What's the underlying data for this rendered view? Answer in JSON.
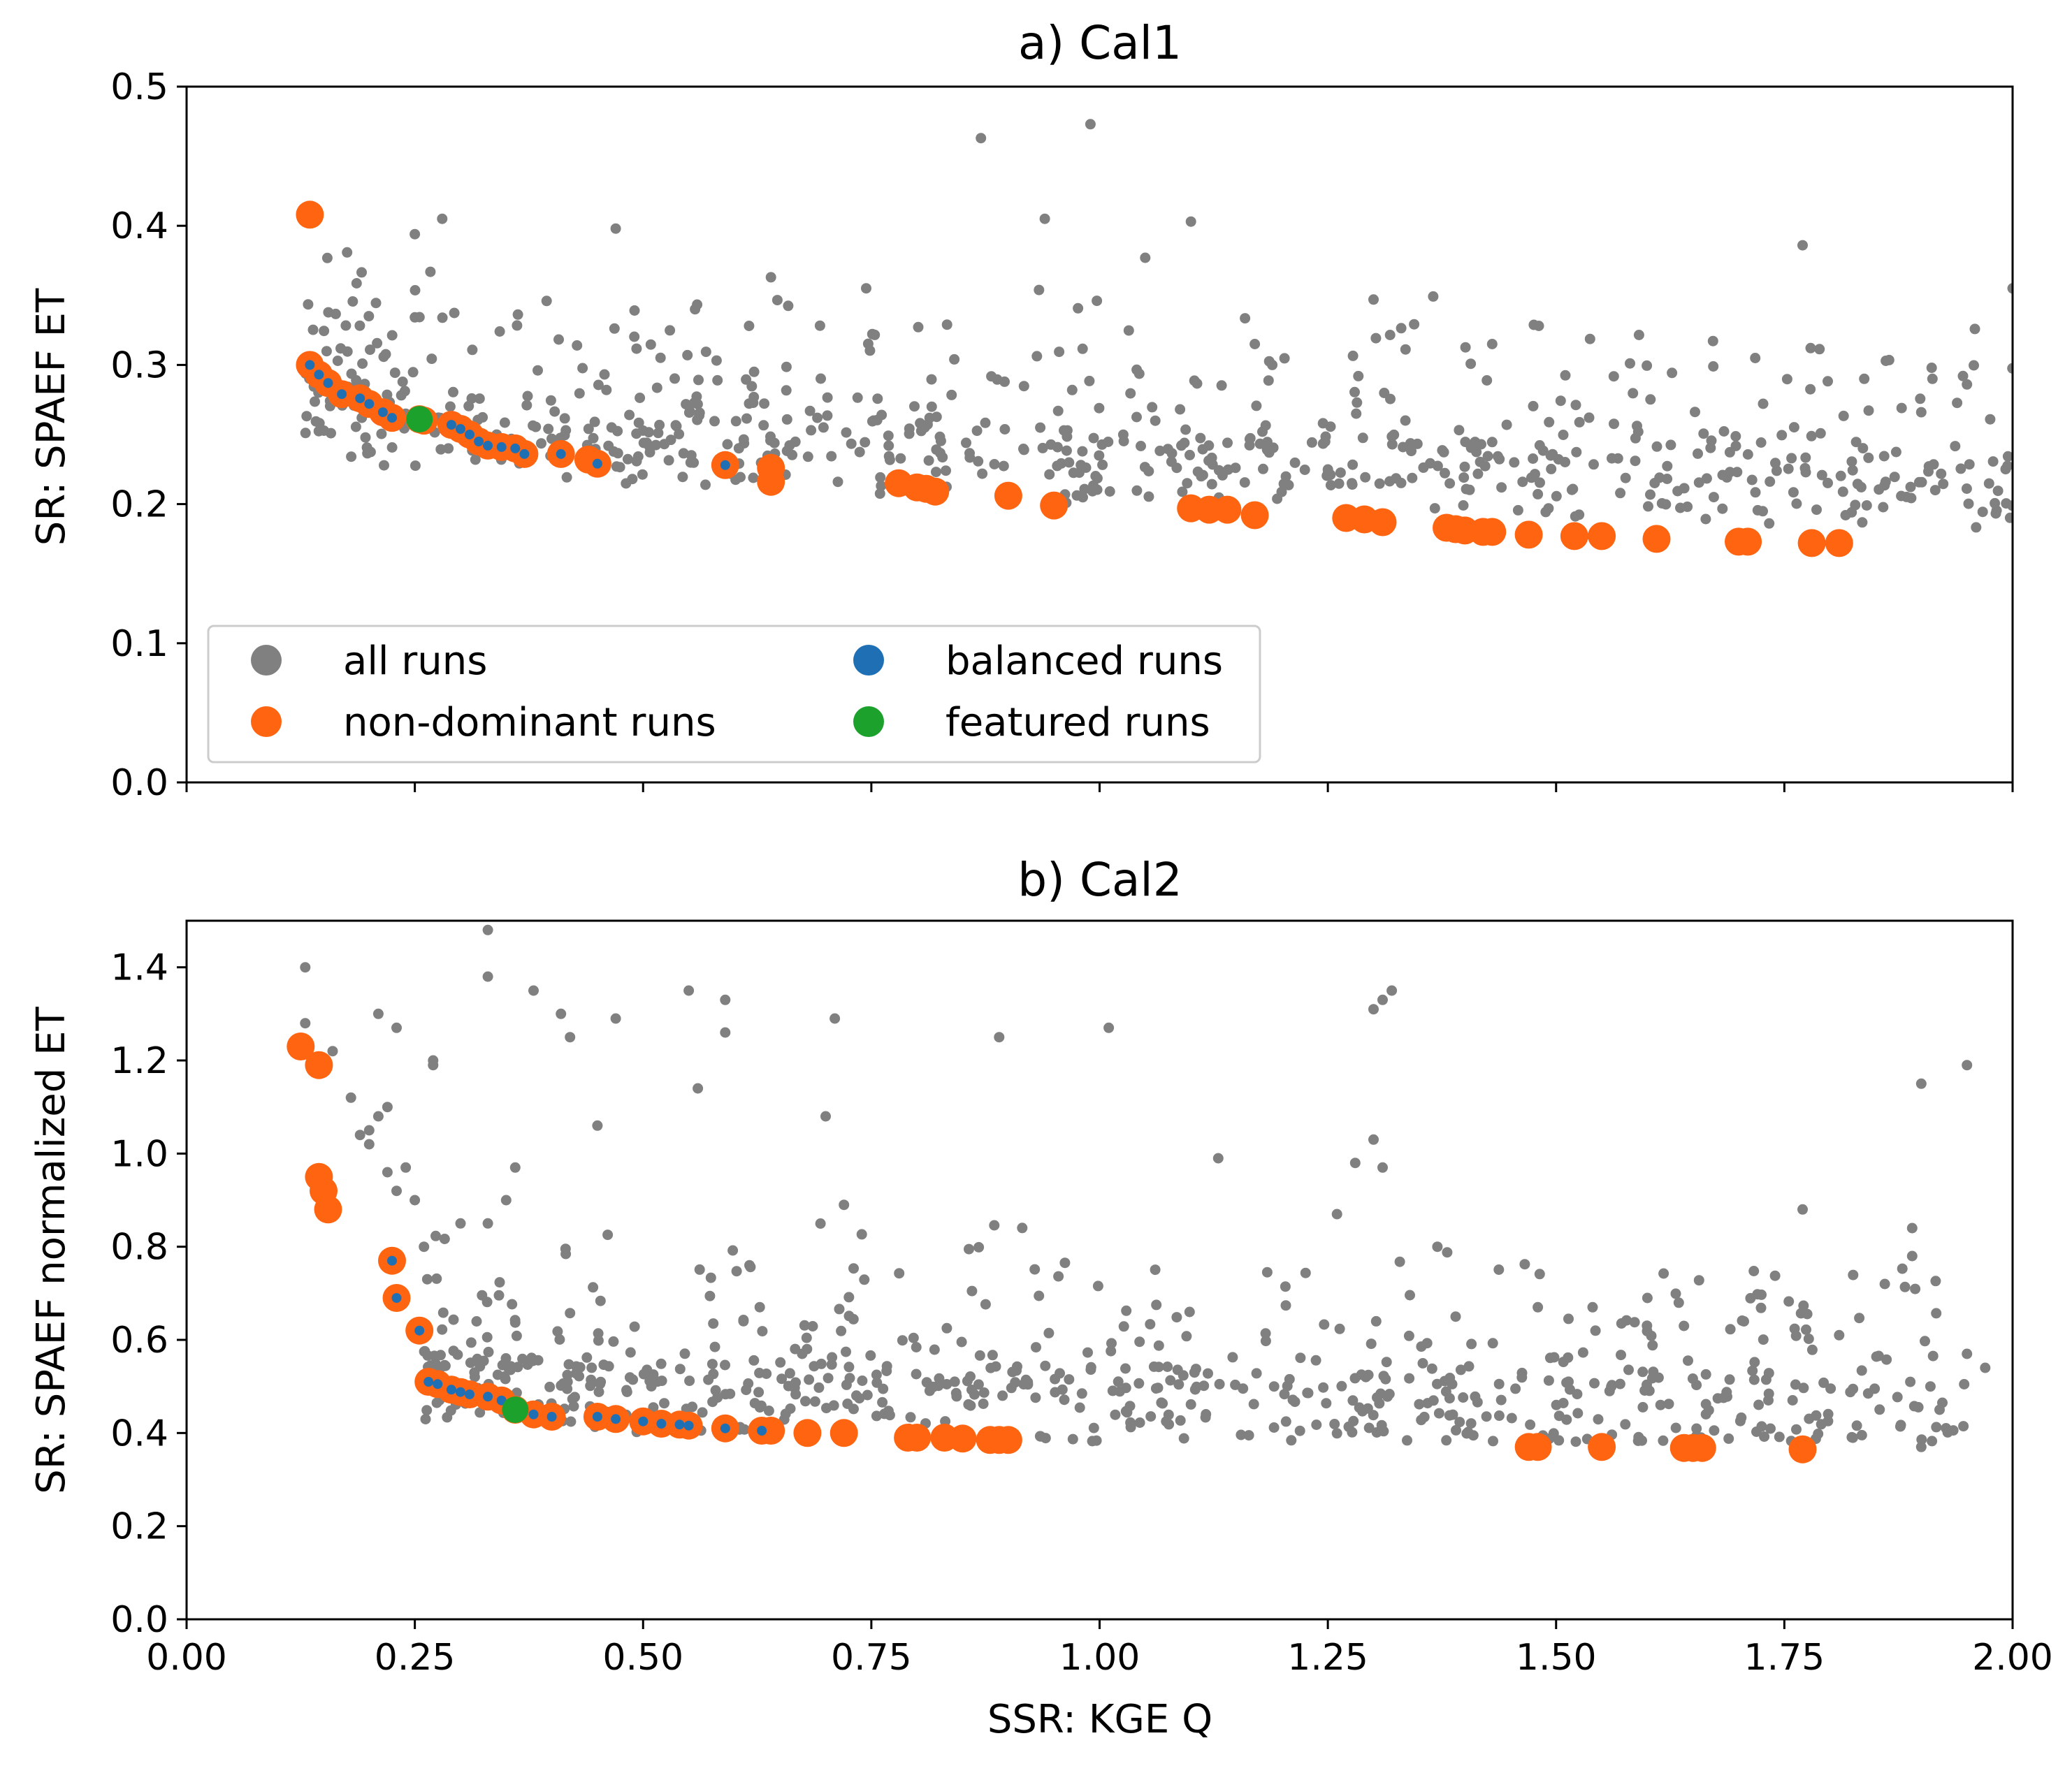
{
  "figure": {
    "xlabel": "SSR: KGE Q",
    "x_tick_labels": [
      "0.00",
      "0.25",
      "0.50",
      "0.75",
      "1.00",
      "1.25",
      "1.50",
      "1.75",
      "2.00"
    ]
  },
  "legend": {
    "position": "lower-left of panel a",
    "items": [
      {
        "label": "all runs",
        "color": "#808080"
      },
      {
        "label": "non-dominant runs",
        "color": "#FF6411"
      },
      {
        "label": "balanced runs",
        "color": "#1F6FB5"
      },
      {
        "label": "featured runs",
        "color": "#1CA12D"
      }
    ]
  },
  "chart_data": [
    {
      "type": "scatter",
      "title": "a) Cal1",
      "xlabel": "",
      "ylabel": "SR: SPAEF ET",
      "xlim": [
        0,
        2
      ],
      "ylim": [
        0,
        0.5
      ],
      "x_ticks": [
        0,
        0.25,
        0.5,
        0.75,
        1.0,
        1.25,
        1.5,
        1.75,
        2.0
      ],
      "y_ticks": [
        0.0,
        0.1,
        0.2,
        0.3,
        0.4,
        0.5
      ],
      "y_tick_labels": [
        "0.0",
        "0.1",
        "0.2",
        "0.3",
        "0.4",
        "0.5"
      ],
      "series": [
        {
          "name": "all runs",
          "color": "#808080",
          "cloud": {
            "n": 700,
            "x_min": 0.13,
            "x_max": 2.0,
            "base": [
              0.265,
              0.205
            ],
            "floor": 0.16,
            "spread": 0.06,
            "seed": 11
          },
          "points": [
            [
              0.87,
              0.463
            ],
            [
              0.99,
              0.473
            ],
            [
              0.25,
              0.394
            ],
            [
              0.28,
              0.405
            ],
            [
              0.47,
              0.398
            ],
            [
              0.94,
              0.405
            ],
            [
              1.77,
              0.386
            ],
            [
              1.1,
              0.403
            ],
            [
              1.05,
              0.377
            ],
            [
              2.0,
              0.355
            ],
            [
              1.3,
              0.347
            ],
            [
              1.95,
              0.286
            ],
            [
              0.97,
              0.282
            ],
            [
              1.9,
              0.266
            ],
            [
              1.43,
              0.315
            ],
            [
              0.64,
              0.363
            ],
            [
              1.17,
              0.315
            ]
          ]
        },
        {
          "name": "non-dominant runs",
          "color": "#FF6411",
          "points": [
            [
              0.135,
              0.408
            ],
            [
              0.135,
              0.3
            ],
            [
              0.145,
              0.293
            ],
            [
              0.155,
              0.287
            ],
            [
              0.17,
              0.279
            ],
            [
              0.19,
              0.276
            ],
            [
              0.2,
              0.272
            ],
            [
              0.215,
              0.266
            ],
            [
              0.225,
              0.262
            ],
            [
              0.255,
              0.261
            ],
            [
              0.26,
              0.26
            ],
            [
              0.29,
              0.257
            ],
            [
              0.3,
              0.254
            ],
            [
              0.31,
              0.25
            ],
            [
              0.32,
              0.245
            ],
            [
              0.33,
              0.242
            ],
            [
              0.345,
              0.241
            ],
            [
              0.36,
              0.24
            ],
            [
              0.37,
              0.236
            ],
            [
              0.41,
              0.236
            ],
            [
              0.44,
              0.232
            ],
            [
              0.45,
              0.229
            ],
            [
              0.59,
              0.228
            ],
            [
              0.64,
              0.226
            ],
            [
              0.64,
              0.216
            ],
            [
              0.78,
              0.215
            ],
            [
              0.8,
              0.212
            ],
            [
              0.81,
              0.211
            ],
            [
              0.82,
              0.209
            ],
            [
              0.9,
              0.206
            ],
            [
              0.95,
              0.199
            ],
            [
              1.1,
              0.197
            ],
            [
              1.12,
              0.196
            ],
            [
              1.14,
              0.196
            ],
            [
              1.17,
              0.192
            ],
            [
              1.27,
              0.19
            ],
            [
              1.29,
              0.189
            ],
            [
              1.31,
              0.187
            ],
            [
              1.38,
              0.183
            ],
            [
              1.39,
              0.182
            ],
            [
              1.4,
              0.181
            ],
            [
              1.42,
              0.18
            ],
            [
              1.43,
              0.18
            ],
            [
              1.47,
              0.178
            ],
            [
              1.52,
              0.177
            ],
            [
              1.55,
              0.177
            ],
            [
              1.61,
              0.175
            ],
            [
              1.7,
              0.173
            ],
            [
              1.71,
              0.173
            ],
            [
              1.78,
              0.172
            ],
            [
              1.81,
              0.172
            ]
          ]
        },
        {
          "name": "balanced runs",
          "color": "#1F6FB5",
          "points": [
            [
              0.135,
              0.3
            ],
            [
              0.145,
              0.293
            ],
            [
              0.155,
              0.287
            ],
            [
              0.17,
              0.279
            ],
            [
              0.19,
              0.276
            ],
            [
              0.2,
              0.272
            ],
            [
              0.215,
              0.266
            ],
            [
              0.225,
              0.262
            ],
            [
              0.29,
              0.257
            ],
            [
              0.3,
              0.254
            ],
            [
              0.31,
              0.25
            ],
            [
              0.32,
              0.245
            ],
            [
              0.33,
              0.242
            ],
            [
              0.345,
              0.241
            ],
            [
              0.36,
              0.24
            ],
            [
              0.37,
              0.236
            ],
            [
              0.41,
              0.236
            ],
            [
              0.45,
              0.229
            ],
            [
              0.59,
              0.228
            ]
          ]
        },
        {
          "name": "featured runs",
          "color": "#1CA12D",
          "points": [
            [
              0.255,
              0.261
            ]
          ]
        }
      ]
    },
    {
      "type": "scatter",
      "title": "b) Cal2",
      "xlabel": "SSR: KGE Q",
      "ylabel": "SR: SPAEF normalized ET",
      "xlim": [
        0,
        2
      ],
      "ylim": [
        0,
        1.5
      ],
      "x_ticks": [
        0,
        0.25,
        0.5,
        0.75,
        1.0,
        1.25,
        1.5,
        1.75,
        2.0
      ],
      "y_ticks": [
        0.0,
        0.2,
        0.4,
        0.6,
        0.8,
        1.0,
        1.2,
        1.4
      ],
      "y_tick_labels": [
        "0.0",
        "0.2",
        "0.4",
        "0.6",
        "0.8",
        "1.0",
        "1.2",
        "1.4"
      ],
      "series": [
        {
          "name": "all runs",
          "color": "#808080",
          "cloud": {
            "n": 650,
            "x_min": 0.26,
            "x_max": 1.95,
            "base": [
              0.5,
              0.42
            ],
            "floor": 0.38,
            "spread": 0.18,
            "seed": 23
          },
          "points": [
            [
              0.13,
              1.28
            ],
            [
              0.13,
              1.4
            ],
            [
              0.16,
              1.22
            ],
            [
              0.21,
              1.3
            ],
            [
              0.23,
              1.27
            ],
            [
              0.33,
              1.48
            ],
            [
              0.33,
              1.38
            ],
            [
              0.38,
              1.35
            ],
            [
              0.41,
              1.3
            ],
            [
              0.47,
              1.29
            ],
            [
              0.55,
              1.35
            ],
            [
              0.59,
              1.33
            ],
            [
              0.59,
              1.26
            ],
            [
              0.71,
              1.29
            ],
            [
              0.89,
              1.25
            ],
            [
              1.01,
              1.27
            ],
            [
              1.31,
              1.33
            ],
            [
              1.32,
              1.35
            ],
            [
              1.3,
              1.31
            ],
            [
              0.21,
              1.08
            ],
            [
              0.2,
              1.05
            ],
            [
              0.19,
              1.04
            ],
            [
              0.22,
              0.96
            ],
            [
              0.23,
              0.92
            ],
            [
              0.27,
              1.19
            ],
            [
              0.27,
              1.2
            ],
            [
              0.56,
              1.14
            ],
            [
              0.42,
              1.25
            ],
            [
              0.45,
              1.06
            ],
            [
              0.7,
              1.08
            ],
            [
              0.72,
              0.89
            ],
            [
              1.13,
              0.99
            ],
            [
              1.3,
              1.03
            ],
            [
              1.31,
              0.97
            ],
            [
              1.28,
              0.98
            ],
            [
              1.9,
              1.15
            ],
            [
              1.95,
              1.19
            ],
            [
              1.89,
              0.84
            ],
            [
              1.89,
              0.78
            ],
            [
              1.77,
              0.88
            ],
            [
              1.86,
              0.72
            ],
            [
              1.91,
              0.5
            ],
            [
              1.92,
              0.45
            ],
            [
              1.95,
              0.57
            ],
            [
              1.97,
              0.54
            ],
            [
              1.9,
              0.37
            ],
            [
              1.81,
              0.61
            ],
            [
              1.26,
              0.87
            ],
            [
              1.37,
              0.8
            ],
            [
              1.39,
              0.65
            ],
            [
              1.6,
              0.69
            ],
            [
              1.64,
              0.63
            ],
            [
              1.54,
              0.67
            ],
            [
              1.48,
              0.67
            ],
            [
              0.18,
              1.12
            ],
            [
              0.2,
              1.02
            ],
            [
              0.22,
              1.1
            ],
            [
              0.25,
              0.9
            ],
            [
              0.24,
              0.97
            ],
            [
              0.26,
              0.8
            ],
            [
              0.3,
              0.85
            ],
            [
              0.33,
              0.85
            ],
            [
              0.36,
              0.97
            ],
            [
              0.35,
              0.9
            ]
          ]
        },
        {
          "name": "non-dominant runs",
          "color": "#FF6411",
          "points": [
            [
              0.125,
              1.23
            ],
            [
              0.145,
              1.19
            ],
            [
              0.145,
              0.95
            ],
            [
              0.15,
              0.92
            ],
            [
              0.155,
              0.88
            ],
            [
              0.225,
              0.77
            ],
            [
              0.23,
              0.69
            ],
            [
              0.255,
              0.62
            ],
            [
              0.265,
              0.51
            ],
            [
              0.275,
              0.505
            ],
            [
              0.29,
              0.493
            ],
            [
              0.3,
              0.488
            ],
            [
              0.31,
              0.483
            ],
            [
              0.33,
              0.478
            ],
            [
              0.345,
              0.47
            ],
            [
              0.36,
              0.45
            ],
            [
              0.38,
              0.44
            ],
            [
              0.4,
              0.435
            ],
            [
              0.45,
              0.435
            ],
            [
              0.47,
              0.43
            ],
            [
              0.5,
              0.425
            ],
            [
              0.52,
              0.42
            ],
            [
              0.54,
              0.418
            ],
            [
              0.55,
              0.416
            ],
            [
              0.59,
              0.41
            ],
            [
              0.63,
              0.405
            ],
            [
              0.64,
              0.405
            ],
            [
              0.68,
              0.4
            ],
            [
              0.72,
              0.4
            ],
            [
              0.79,
              0.39
            ],
            [
              0.8,
              0.39
            ],
            [
              0.83,
              0.39
            ],
            [
              0.85,
              0.388
            ],
            [
              0.88,
              0.385
            ],
            [
              0.89,
              0.385
            ],
            [
              0.9,
              0.385
            ],
            [
              1.47,
              0.37
            ],
            [
              1.48,
              0.37
            ],
            [
              1.55,
              0.37
            ],
            [
              1.64,
              0.368
            ],
            [
              1.65,
              0.368
            ],
            [
              1.66,
              0.368
            ],
            [
              1.77,
              0.365
            ]
          ]
        },
        {
          "name": "balanced runs",
          "color": "#1F6FB5",
          "points": [
            [
              0.225,
              0.77
            ],
            [
              0.23,
              0.69
            ],
            [
              0.255,
              0.62
            ],
            [
              0.265,
              0.51
            ],
            [
              0.275,
              0.505
            ],
            [
              0.29,
              0.493
            ],
            [
              0.3,
              0.488
            ],
            [
              0.31,
              0.483
            ],
            [
              0.33,
              0.478
            ],
            [
              0.345,
              0.47
            ],
            [
              0.38,
              0.44
            ],
            [
              0.4,
              0.435
            ],
            [
              0.45,
              0.435
            ],
            [
              0.47,
              0.43
            ],
            [
              0.5,
              0.425
            ],
            [
              0.52,
              0.42
            ],
            [
              0.54,
              0.418
            ],
            [
              0.55,
              0.416
            ],
            [
              0.59,
              0.41
            ],
            [
              0.63,
              0.405
            ]
          ]
        },
        {
          "name": "featured runs",
          "color": "#1CA12D",
          "points": [
            [
              0.36,
              0.45
            ]
          ]
        }
      ]
    }
  ]
}
